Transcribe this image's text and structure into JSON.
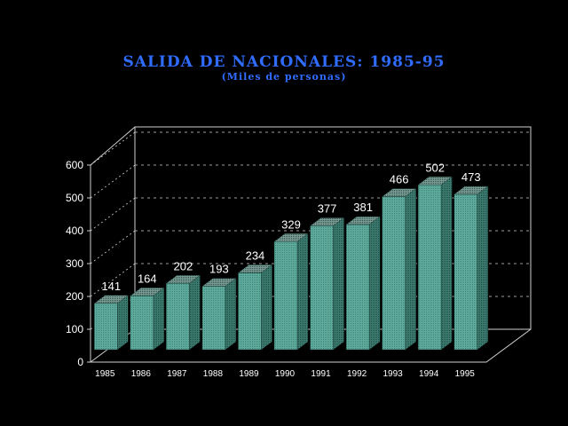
{
  "chart_data": {
    "type": "bar",
    "title": "SALIDA DE NACIONALES: 1985-95",
    "subtitle": "(Miles de personas)",
    "xlabel": "",
    "ylabel": "",
    "categories": [
      "1985",
      "1986",
      "1987",
      "1988",
      "1989",
      "1990",
      "1991",
      "1992",
      "1993",
      "1994",
      "1995"
    ],
    "values": [
      141,
      164,
      202,
      193,
      234,
      329,
      377,
      381,
      466,
      502,
      473
    ],
    "y_ticks": [
      "0",
      "100",
      "200",
      "300",
      "400",
      "500",
      "600"
    ],
    "ylim": [
      0,
      600
    ],
    "grid": true,
    "legend": "none",
    "colors": {
      "background": "#000000",
      "title": "#2f6cff",
      "bar_front": "#5aa295",
      "bar_top": "#4e8a80",
      "bar_side": "#2e6a60",
      "text": "#ffffff",
      "axis": "#cfcfcf"
    }
  }
}
